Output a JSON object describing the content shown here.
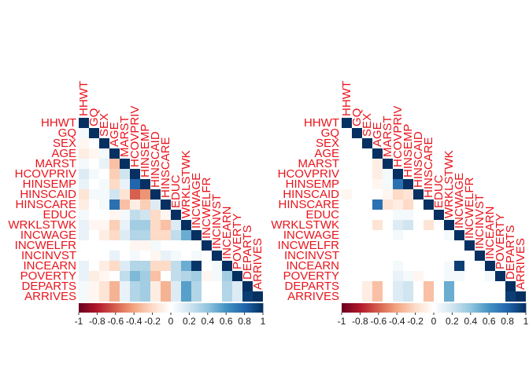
{
  "chart_data": [
    {
      "type": "heatmap",
      "shape": "lower-triangle",
      "variables": [
        "HHWT",
        "GQ",
        "SEX",
        "AGE",
        "MARST",
        "HCOVPRIV",
        "HINSEMP",
        "HINSCAID",
        "HINSCARE",
        "EDUC",
        "WRKLSTWK",
        "INCWAGE",
        "INCWELFR",
        "INCINVST",
        "INCEARN",
        "POVERTY",
        "DEPARTS",
        "ARRIVES"
      ],
      "colorbar": {
        "ticks": [
          "-1",
          "-0.8",
          "-0.6",
          "-0.4",
          "-0.2",
          "0",
          "0.2",
          "0.4",
          "0.6",
          "0.8",
          "1"
        ],
        "range": [
          -1,
          1
        ]
      },
      "correlations": [
        [
          1.0
        ],
        [
          0.05,
          1.0
        ],
        [
          -0.05,
          0.0,
          1.0
        ],
        [
          -0.1,
          -0.05,
          0.05,
          1.0
        ],
        [
          0.05,
          0.0,
          0.1,
          -0.3,
          1.0
        ],
        [
          0.15,
          0.05,
          0.0,
          -0.25,
          0.2,
          1.0
        ],
        [
          0.1,
          0.0,
          0.05,
          -0.2,
          0.1,
          0.8,
          1.0
        ],
        [
          -0.15,
          0.05,
          0.05,
          0.2,
          -0.15,
          -0.6,
          -0.45,
          1.0
        ],
        [
          -0.1,
          0.0,
          0.05,
          0.75,
          -0.3,
          -0.1,
          -0.25,
          0.15,
          1.0
        ],
        [
          0.05,
          0.0,
          0.0,
          -0.05,
          0.05,
          0.25,
          0.2,
          -0.2,
          -0.05,
          1.0
        ],
        [
          0.1,
          -0.05,
          -0.05,
          -0.25,
          0.1,
          0.35,
          0.35,
          -0.2,
          -0.3,
          0.15,
          1.0
        ],
        [
          0.1,
          0.0,
          -0.1,
          -0.2,
          0.15,
          0.3,
          0.3,
          -0.2,
          -0.2,
          0.25,
          0.5,
          1.0
        ],
        [
          0.0,
          0.0,
          0.0,
          0.0,
          0.0,
          -0.05,
          -0.05,
          0.05,
          0.0,
          0.0,
          0.0,
          0.0,
          1.0
        ],
        [
          0.0,
          0.0,
          0.0,
          0.1,
          0.0,
          0.05,
          0.0,
          -0.05,
          0.1,
          0.05,
          0.0,
          0.05,
          0.0,
          1.0
        ],
        [
          0.1,
          0.0,
          -0.1,
          -0.2,
          0.15,
          0.3,
          0.3,
          -0.2,
          -0.2,
          0.25,
          0.5,
          0.98,
          0.0,
          0.05,
          1.0
        ],
        [
          0.1,
          -0.1,
          -0.05,
          0.0,
          0.25,
          0.45,
          0.35,
          -0.3,
          0.0,
          0.25,
          0.3,
          0.35,
          -0.05,
          0.05,
          0.35,
          1.0
        ],
        [
          0.05,
          -0.05,
          -0.15,
          -0.35,
          0.1,
          0.3,
          0.35,
          -0.1,
          -0.35,
          0.15,
          0.55,
          0.3,
          0.0,
          0.0,
          0.3,
          0.15,
          1.0
        ],
        [
          0.05,
          -0.05,
          -0.15,
          -0.35,
          0.1,
          0.3,
          0.35,
          -0.1,
          -0.35,
          0.15,
          0.55,
          0.3,
          0.0,
          0.0,
          0.3,
          0.15,
          0.95,
          1.0
        ]
      ]
    },
    {
      "type": "heatmap",
      "shape": "lower-triangle",
      "variables": [
        "HHWT",
        "GQ",
        "SEX",
        "AGE",
        "MARST",
        "HCOVPRIV",
        "HINSEMP",
        "HINSCAID",
        "HINSCARE",
        "EDUC",
        "WRKLSTWK",
        "INCWAGE",
        "INCWELFR",
        "INCINVST",
        "INCEARN",
        "POVERTY",
        "DEPARTS",
        "ARRIVES"
      ],
      "colorbar": {
        "ticks": [
          "-1",
          "-0.8",
          "-0.6",
          "-0.4",
          "-0.2",
          "0",
          "0.2",
          "0.4",
          "0.6",
          "0.8",
          "1"
        ],
        "range": [
          -1,
          1
        ]
      },
      "correlations": [
        [
          1.0
        ],
        [
          0.0,
          1.0
        ],
        [
          0.0,
          0.0,
          1.0
        ],
        [
          0.0,
          0.0,
          0.0,
          1.0
        ],
        [
          0.0,
          0.0,
          0.0,
          -0.1,
          1.0
        ],
        [
          0.0,
          0.0,
          0.0,
          -0.1,
          0.05,
          1.0
        ],
        [
          0.0,
          0.0,
          0.0,
          -0.05,
          0.05,
          0.75,
          1.0
        ],
        [
          -0.05,
          0.0,
          0.0,
          0.0,
          -0.05,
          -0.2,
          -0.15,
          1.0
        ],
        [
          0.0,
          0.0,
          0.0,
          0.75,
          -0.15,
          -0.1,
          -0.2,
          0.0,
          1.0
        ],
        [
          0.0,
          0.0,
          0.0,
          0.0,
          0.0,
          0.05,
          0.05,
          0.0,
          0.0,
          1.0
        ],
        [
          0.0,
          0.0,
          0.0,
          -0.15,
          0.0,
          0.15,
          0.2,
          0.0,
          -0.15,
          0.0,
          1.0
        ],
        [
          0.0,
          0.0,
          0.0,
          0.0,
          0.0,
          0.05,
          0.0,
          0.0,
          0.0,
          0.0,
          0.05,
          1.0
        ],
        [
          0.0,
          0.0,
          0.0,
          0.0,
          0.0,
          0.0,
          0.0,
          0.0,
          0.0,
          0.0,
          0.0,
          0.0,
          1.0
        ],
        [
          0.0,
          0.0,
          0.0,
          0.0,
          0.0,
          0.0,
          0.0,
          0.0,
          0.0,
          0.0,
          0.0,
          0.0,
          0.0,
          1.0
        ],
        [
          0.0,
          0.0,
          0.0,
          0.0,
          0.0,
          0.05,
          0.0,
          0.0,
          0.0,
          0.0,
          0.05,
          0.95,
          0.0,
          0.0,
          1.0
        ],
        [
          0.0,
          0.0,
          0.0,
          0.0,
          0.0,
          0.1,
          0.05,
          -0.05,
          0.0,
          0.0,
          0.05,
          0.05,
          0.0,
          0.0,
          0.05,
          1.0
        ],
        [
          0.0,
          0.0,
          -0.1,
          -0.3,
          0.0,
          0.15,
          0.2,
          0.0,
          -0.3,
          0.0,
          0.5,
          0.0,
          0.0,
          0.0,
          0.0,
          0.0,
          1.0
        ],
        [
          0.0,
          0.0,
          -0.1,
          -0.3,
          0.0,
          0.15,
          0.2,
          0.0,
          -0.3,
          0.0,
          0.5,
          0.0,
          0.0,
          0.0,
          0.0,
          0.0,
          0.95,
          1.0
        ]
      ]
    }
  ]
}
